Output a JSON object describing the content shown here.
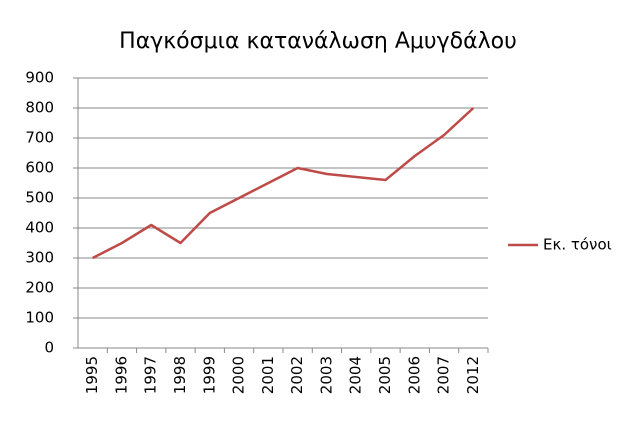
{
  "chart_data": {
    "type": "line",
    "title": "Παγκόσμια κατανάλωση Αμυγδάλου",
    "categories": [
      "1995",
      "1996",
      "1997",
      "1998",
      "1999",
      "2000",
      "2001",
      "2002",
      "2003",
      "2004",
      "2005",
      "2006",
      "2007",
      "2012"
    ],
    "series": [
      {
        "name": "Εκ. τόνοι",
        "color": "#be4b48",
        "values": [
          300,
          350,
          410,
          350,
          450,
          500,
          550,
          600,
          580,
          570,
          560,
          640,
          710,
          800
        ]
      }
    ],
    "ylim": [
      0,
      900
    ],
    "yticks": [
      0,
      100,
      200,
      300,
      400,
      500,
      600,
      700,
      800,
      900
    ],
    "grid": true,
    "legend": "right"
  }
}
